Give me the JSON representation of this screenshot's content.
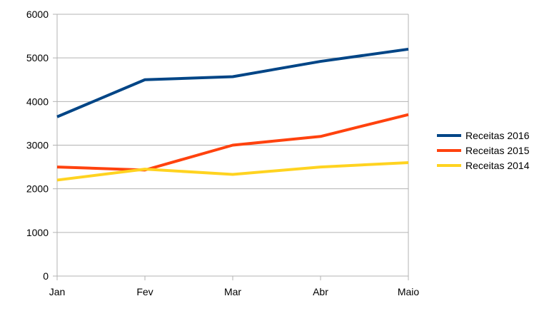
{
  "chart_data": {
    "type": "line",
    "categories": [
      "Jan",
      "Fev",
      "Mar",
      "Abr",
      "Maio"
    ],
    "ylim": [
      0,
      6000
    ],
    "yticks": [
      0,
      1000,
      2000,
      3000,
      4000,
      5000,
      6000
    ],
    "grid": true,
    "legend_position": "right",
    "series": [
      {
        "name": "Receitas 2016",
        "color": "#004586",
        "values": [
          3650,
          4500,
          4570,
          4920,
          5200
        ]
      },
      {
        "name": "Receitas 2015",
        "color": "#ff420e",
        "values": [
          2500,
          2430,
          3000,
          3200,
          3700
        ]
      },
      {
        "name": "Receitas 2014",
        "color": "#ffd320",
        "values": [
          2200,
          2450,
          2330,
          2500,
          2600
        ]
      }
    ]
  }
}
